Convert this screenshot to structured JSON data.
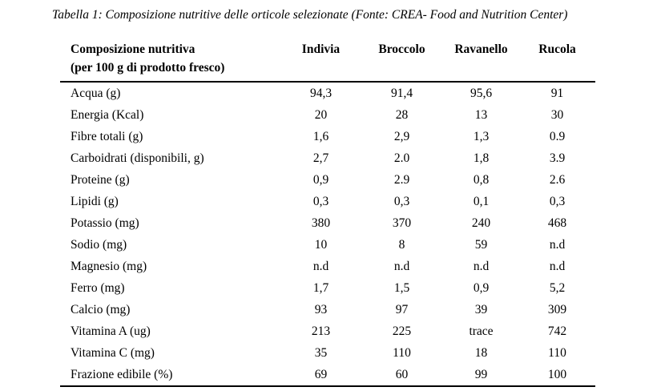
{
  "page": {
    "title": "Tabella 1: Composizione nutritive delle orticole selezionate (Fonte: CREA- Food and Nutrition Center)"
  },
  "colors": {
    "background": "#ffffff",
    "text": "#000000",
    "rule": "#000000"
  },
  "table": {
    "header": {
      "label_line1": "Composizione nutritiva",
      "label_line2": "(per 100 g di prodotto fresco)",
      "columns": [
        "Indivia",
        "Broccolo",
        "Ravanello",
        "Rucola"
      ]
    },
    "rows": [
      {
        "label": "Acqua (g)",
        "values": [
          "94,3",
          "91,4",
          "95,6",
          "91"
        ]
      },
      {
        "label": "Energia (Kcal)",
        "values": [
          "20",
          "28",
          "13",
          "30"
        ]
      },
      {
        "label": "Fibre totali (g)",
        "values": [
          "1,6",
          "2,9",
          "1,3",
          "0.9"
        ]
      },
      {
        "label": "Carboidrati (disponibili, g)",
        "values": [
          "2,7",
          "2.0",
          "1,8",
          "3.9"
        ]
      },
      {
        "label": "Proteine (g)",
        "values": [
          "0,9",
          "2.9",
          "0,8",
          "2.6"
        ]
      },
      {
        "label": "Lipidi (g)",
        "values": [
          "0,3",
          "0,3",
          "0,1",
          "0,3"
        ]
      },
      {
        "label": "Potassio (mg)",
        "values": [
          "380",
          "370",
          "240",
          "468"
        ]
      },
      {
        "label": "Sodio (mg)",
        "values": [
          "10",
          "8",
          "59",
          "n.d"
        ]
      },
      {
        "label": "Magnesio (mg)",
        "values": [
          "n.d",
          "n.d",
          "n.d",
          "n.d"
        ]
      },
      {
        "label": "Ferro (mg)",
        "values": [
          "1,7",
          "1,5",
          "0,9",
          "5,2"
        ]
      },
      {
        "label": "Calcio (mg)",
        "values": [
          "93",
          "97",
          "39",
          "309"
        ]
      },
      {
        "label": "Vitamina A (ug)",
        "values": [
          "213",
          "225",
          "trace",
          "742"
        ]
      },
      {
        "label": "Vitamina C (mg)",
        "values": [
          "35",
          "110",
          "18",
          "110"
        ]
      },
      {
        "label": "Frazione edibile (%)",
        "values": [
          "69",
          "60",
          "99",
          "100"
        ]
      }
    ]
  },
  "chart_data": {
    "type": "table",
    "title": "Tabella 1: Composizione nutritive delle orticole selezionate (Fonte: CREA- Food and Nutrition Center)",
    "columns": [
      "Composizione nutritiva (per 100 g di prodotto fresco)",
      "Indivia",
      "Broccolo",
      "Ravanello",
      "Rucola"
    ],
    "rows": [
      [
        "Acqua (g)",
        "94,3",
        "91,4",
        "95,6",
        "91"
      ],
      [
        "Energia (Kcal)",
        "20",
        "28",
        "13",
        "30"
      ],
      [
        "Fibre totali (g)",
        "1,6",
        "2,9",
        "1,3",
        "0.9"
      ],
      [
        "Carboidrati (disponibili, g)",
        "2,7",
        "2.0",
        "1,8",
        "3.9"
      ],
      [
        "Proteine (g)",
        "0,9",
        "2.9",
        "0,8",
        "2.6"
      ],
      [
        "Lipidi (g)",
        "0,3",
        "0,3",
        "0,1",
        "0,3"
      ],
      [
        "Potassio (mg)",
        "380",
        "370",
        "240",
        "468"
      ],
      [
        "Sodio (mg)",
        "10",
        "8",
        "59",
        "n.d"
      ],
      [
        "Magnesio (mg)",
        "n.d",
        "n.d",
        "n.d",
        "n.d"
      ],
      [
        "Ferro (mg)",
        "1,7",
        "1,5",
        "0,9",
        "5,2"
      ],
      [
        "Calcio (mg)",
        "93",
        "97",
        "39",
        "309"
      ],
      [
        "Vitamina A (ug)",
        "213",
        "225",
        "trace",
        "742"
      ],
      [
        "Vitamina C (mg)",
        "35",
        "110",
        "18",
        "110"
      ],
      [
        "Frazione edibile (%)",
        "69",
        "60",
        "99",
        "100"
      ]
    ]
  }
}
